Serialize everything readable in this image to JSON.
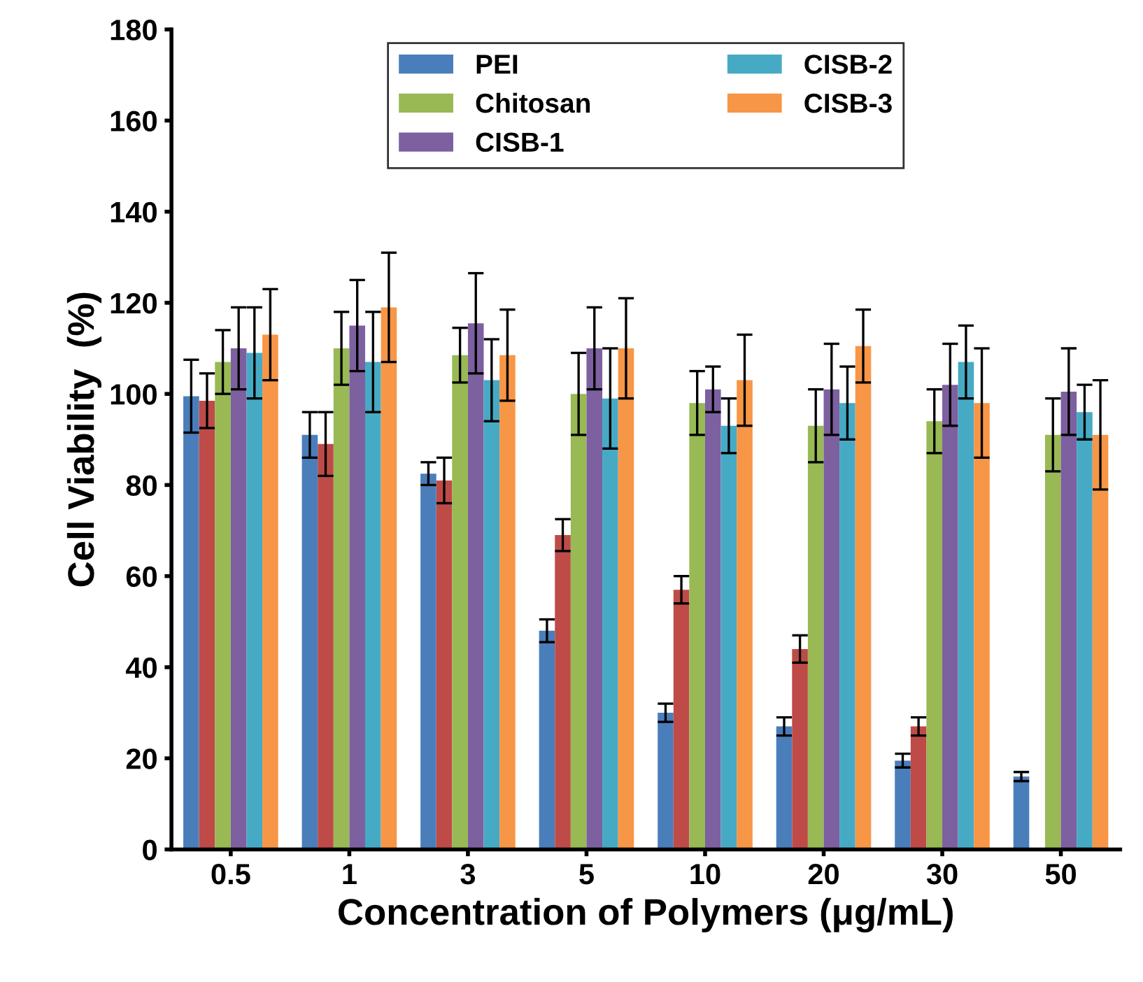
{
  "chart_data": {
    "type": "bar",
    "xlabel": "Concentration of Polymers (μg/mL)",
    "ylabel": "Cell Viability  (%)",
    "categories": [
      "0.5",
      "1",
      "3",
      "5",
      "10",
      "20",
      "30",
      "50"
    ],
    "ylim": [
      0,
      180
    ],
    "yticks": [
      0,
      20,
      40,
      60,
      80,
      100,
      120,
      140,
      160,
      180
    ],
    "grid": false,
    "legend": "top",
    "series": [
      {
        "name": "PEI",
        "color": "#4a7ebb",
        "values": [
          99.5,
          91,
          82.5,
          48,
          30,
          27,
          19.5,
          16
        ],
        "errors": [
          8,
          5,
          2.5,
          2.5,
          2,
          2,
          1.5,
          1
        ]
      },
      {
        "color": "#be4b48",
        "values": [
          98.5,
          89,
          81,
          69,
          57,
          44,
          27,
          null
        ],
        "errors": [
          6,
          7,
          5,
          3.5,
          3,
          3,
          2,
          null
        ]
      },
      {
        "name": "Chitosan",
        "color": "#98b954",
        "values": [
          107,
          110,
          108.5,
          100,
          98,
          93,
          94,
          91
        ],
        "errors": [
          7,
          8,
          6,
          9,
          7,
          8,
          7,
          8
        ]
      },
      {
        "name": "CISB-1",
        "color": "#7d60a0",
        "values": [
          110,
          115,
          115.5,
          110,
          101,
          101,
          102,
          100.5
        ],
        "errors": [
          9,
          10,
          11,
          9,
          5,
          10,
          9,
          9.5
        ]
      },
      {
        "name": "CISB-2",
        "color": "#46aac5",
        "values": [
          109,
          107,
          103,
          99,
          93,
          98,
          107,
          96
        ],
        "errors": [
          10,
          11,
          9,
          11,
          6,
          8,
          8,
          6
        ]
      },
      {
        "name": "CISB-3",
        "color": "#f79646",
        "values": [
          113,
          119,
          108.5,
          110,
          103,
          110.5,
          98,
          91
        ],
        "errors": [
          10,
          12,
          10,
          11,
          10,
          8,
          12,
          12
        ]
      }
    ]
  }
}
